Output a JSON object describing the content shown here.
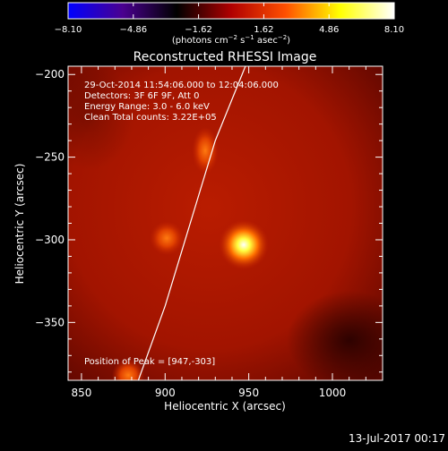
{
  "colorbar": {
    "ticks": [
      "−8.10",
      "−4.86",
      "−1.62",
      "1.62",
      "4.86",
      "8.10"
    ],
    "unit_main": "(photons cm",
    "unit_sup1": "−2",
    "unit_mid1": " s",
    "unit_sup2": "−1",
    "unit_mid2": " asec",
    "unit_sup3": "−2",
    "unit_end": ")"
  },
  "timestamp": "13-Jul-2017 00:17",
  "chart_data": {
    "type": "heatmap",
    "title": "Reconstructed RHESSI Image",
    "xlabel": "Heliocentric X (arcsec)",
    "ylabel": "Heliocentric Y (arcsec)",
    "xlim": [
      842,
      1030
    ],
    "ylim": [
      -385,
      -195
    ],
    "x_ticks": [
      850,
      900,
      950,
      1000
    ],
    "y_ticks": [
      -200,
      -250,
      -300,
      -350
    ],
    "x_tick_labels": [
      "850",
      "900",
      "950",
      "1000"
    ],
    "y_tick_labels": [
      "−200",
      "−250",
      "−300",
      "−350"
    ],
    "colormap": [
      "#0000ff",
      "#4a0090",
      "#000000",
      "#b00000",
      "#ff5000",
      "#ffff00",
      "#ffffff"
    ],
    "annotations": [
      "29-Oct-2014 11:54:06.000 to 12:04:06.000",
      "Detectors: 3F 6F 9F, Att 0",
      "Energy Range: 3.0 - 6.0 keV",
      "Clean    Total counts: 3.22E+05"
    ],
    "peak_label": "Position of Peak = [947,-303]",
    "sources": [
      {
        "x": 947,
        "y": -303,
        "intensity": 1.0
      },
      {
        "x": 924,
        "y": -246,
        "intensity": 0.62
      },
      {
        "x": 901,
        "y": -299,
        "intensity": 0.5
      },
      {
        "x": 878,
        "y": -382,
        "intensity": 0.45
      }
    ],
    "limb_curve": [
      [
        884,
        -385
      ],
      [
        900,
        -340
      ],
      [
        915,
        -290
      ],
      [
        930,
        -240
      ],
      [
        948,
        -195
      ]
    ]
  }
}
